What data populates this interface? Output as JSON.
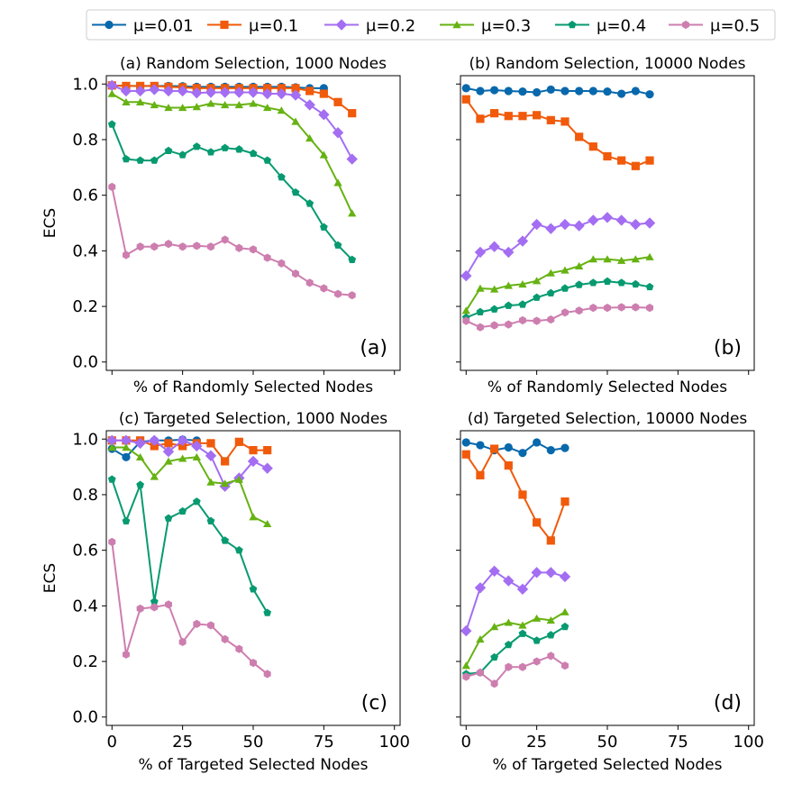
{
  "legend": {
    "placement": "top-center",
    "entries": [
      {
        "label": "μ=0.01",
        "color": "#0868ac",
        "marker": "circle"
      },
      {
        "label": "μ=0.1",
        "color": "#f05a0a",
        "marker": "square"
      },
      {
        "label": "μ=0.2",
        "color": "#a46ef2",
        "marker": "diamond"
      },
      {
        "label": "μ=0.3",
        "color": "#66b212",
        "marker": "triangle"
      },
      {
        "label": "μ=0.4",
        "color": "#079a70",
        "marker": "pentagon"
      },
      {
        "label": "μ=0.5",
        "color": "#cd7eaf",
        "marker": "hexagon"
      }
    ]
  },
  "chart_data": [
    {
      "type": "line",
      "title": "(a) Random Selection, 1000 Nodes",
      "tag": "(a)",
      "xlabel": "% of Randomly Selected Nodes",
      "ylabel": "ECS",
      "xlim": [
        -2,
        102
      ],
      "ylim": [
        -0.03,
        1.03
      ],
      "xticks": [
        0,
        25,
        50,
        75,
        100
      ],
      "show_xtick_labels": false,
      "yticks": [
        0.0,
        0.2,
        0.4,
        0.6,
        0.8,
        1.0
      ],
      "ytick_labels": [
        "0.0",
        "0.2",
        "0.4",
        "0.6",
        "0.8",
        "1.0"
      ],
      "show_ytick_labels": true,
      "grid": false,
      "series": [
        {
          "name": "μ=0.01",
          "x": [
            0,
            5,
            10,
            15,
            20,
            25,
            30,
            35,
            40,
            45,
            50,
            55,
            60,
            65,
            70,
            75
          ],
          "values": [
            0.995,
            0.993,
            0.993,
            0.993,
            0.993,
            0.992,
            0.99,
            0.99,
            0.99,
            0.99,
            0.99,
            0.99,
            0.99,
            0.988,
            0.985,
            0.985
          ]
        },
        {
          "name": "μ=0.1",
          "x": [
            0,
            5,
            10,
            15,
            20,
            25,
            30,
            35,
            40,
            45,
            50,
            55,
            60,
            65,
            70,
            75,
            80,
            85
          ],
          "values": [
            0.995,
            0.993,
            0.993,
            0.993,
            0.99,
            0.988,
            0.985,
            0.985,
            0.985,
            0.985,
            0.985,
            0.985,
            0.985,
            0.985,
            0.975,
            0.965,
            0.935,
            0.895
          ]
        },
        {
          "name": "μ=0.2",
          "x": [
            0,
            5,
            10,
            15,
            20,
            25,
            30,
            35,
            40,
            45,
            50,
            55,
            60,
            65,
            70,
            75,
            80,
            85
          ],
          "values": [
            0.995,
            0.975,
            0.975,
            0.98,
            0.975,
            0.975,
            0.968,
            0.97,
            0.97,
            0.97,
            0.97,
            0.965,
            0.965,
            0.96,
            0.925,
            0.89,
            0.825,
            0.73
          ]
        },
        {
          "name": "μ=0.3",
          "x": [
            0,
            5,
            10,
            15,
            20,
            25,
            30,
            35,
            40,
            45,
            50,
            55,
            60,
            65,
            70,
            75,
            80,
            85
          ],
          "values": [
            0.965,
            0.935,
            0.935,
            0.925,
            0.915,
            0.915,
            0.918,
            0.93,
            0.925,
            0.925,
            0.93,
            0.915,
            0.905,
            0.865,
            0.805,
            0.745,
            0.645,
            0.535
          ]
        },
        {
          "name": "μ=0.4",
          "x": [
            0,
            5,
            10,
            15,
            20,
            25,
            30,
            35,
            40,
            45,
            50,
            55,
            60,
            65,
            70,
            75,
            80,
            85
          ],
          "values": [
            0.855,
            0.73,
            0.725,
            0.725,
            0.76,
            0.745,
            0.775,
            0.755,
            0.77,
            0.765,
            0.75,
            0.725,
            0.665,
            0.61,
            0.57,
            0.485,
            0.42,
            0.368
          ]
        },
        {
          "name": "μ=0.5",
          "x": [
            0,
            5,
            10,
            15,
            20,
            25,
            30,
            35,
            40,
            45,
            50,
            55,
            60,
            65,
            70,
            75,
            80,
            85
          ],
          "values": [
            0.63,
            0.385,
            0.415,
            0.415,
            0.425,
            0.415,
            0.418,
            0.415,
            0.44,
            0.41,
            0.405,
            0.375,
            0.355,
            0.318,
            0.285,
            0.265,
            0.245,
            0.24
          ]
        }
      ]
    },
    {
      "type": "line",
      "title": "(b) Random Selection, 10000 Nodes",
      "tag": "(b)",
      "xlabel": "% of Randomly Selected Nodes",
      "ylabel": "",
      "xlim": [
        -2,
        102
      ],
      "ylim": [
        -0.03,
        1.03
      ],
      "xticks": [
        0,
        25,
        50,
        75,
        100
      ],
      "show_xtick_labels": false,
      "yticks": [
        0.0,
        0.2,
        0.4,
        0.6,
        0.8,
        1.0
      ],
      "show_ytick_labels": false,
      "grid": false,
      "series": [
        {
          "name": "μ=0.01",
          "x": [
            0,
            5,
            10,
            15,
            20,
            25,
            30,
            35,
            40,
            45,
            50,
            55,
            60,
            65
          ],
          "values": [
            0.985,
            0.975,
            0.978,
            0.975,
            0.973,
            0.97,
            0.98,
            0.975,
            0.975,
            0.975,
            0.973,
            0.965,
            0.975,
            0.963
          ]
        },
        {
          "name": "μ=0.1",
          "x": [
            0,
            5,
            10,
            15,
            20,
            25,
            30,
            35,
            40,
            45,
            50,
            55,
            60,
            65
          ],
          "values": [
            0.945,
            0.875,
            0.895,
            0.885,
            0.885,
            0.888,
            0.87,
            0.865,
            0.81,
            0.775,
            0.74,
            0.725,
            0.705,
            0.725
          ]
        },
        {
          "name": "μ=0.2",
          "x": [
            0,
            5,
            10,
            15,
            20,
            25,
            30,
            35,
            40,
            45,
            50,
            55,
            60,
            65
          ],
          "values": [
            0.31,
            0.395,
            0.415,
            0.395,
            0.435,
            0.495,
            0.48,
            0.495,
            0.49,
            0.51,
            0.52,
            0.51,
            0.495,
            0.5
          ]
        },
        {
          "name": "μ=0.3",
          "x": [
            0,
            5,
            10,
            15,
            20,
            25,
            30,
            35,
            40,
            45,
            50,
            55,
            60,
            65
          ],
          "values": [
            0.185,
            0.265,
            0.262,
            0.275,
            0.28,
            0.292,
            0.32,
            0.33,
            0.345,
            0.37,
            0.37,
            0.365,
            0.37,
            0.378
          ]
        },
        {
          "name": "μ=0.4",
          "x": [
            0,
            5,
            10,
            15,
            20,
            25,
            30,
            35,
            40,
            45,
            50,
            55,
            60,
            65
          ],
          "values": [
            0.16,
            0.18,
            0.19,
            0.203,
            0.207,
            0.232,
            0.248,
            0.265,
            0.278,
            0.285,
            0.29,
            0.285,
            0.28,
            0.27
          ]
        },
        {
          "name": "μ=0.5",
          "x": [
            0,
            5,
            10,
            15,
            20,
            25,
            30,
            35,
            40,
            45,
            50,
            55,
            60,
            65
          ],
          "values": [
            0.148,
            0.125,
            0.132,
            0.135,
            0.15,
            0.148,
            0.153,
            0.178,
            0.185,
            0.195,
            0.195,
            0.197,
            0.197,
            0.195
          ]
        }
      ]
    },
    {
      "type": "line",
      "title": "(c) Targeted Selection, 1000 Nodes",
      "tag": "(c)",
      "xlabel": "% of Targeted Selected Nodes",
      "ylabel": "ECS",
      "xlim": [
        -2,
        102
      ],
      "ylim": [
        -0.03,
        1.03
      ],
      "xticks": [
        0,
        25,
        50,
        75,
        100
      ],
      "xtick_labels": [
        "0",
        "25",
        "50",
        "75",
        "100"
      ],
      "show_xtick_labels": true,
      "yticks": [
        0.0,
        0.2,
        0.4,
        0.6,
        0.8,
        1.0
      ],
      "ytick_labels": [
        "0.0",
        "0.2",
        "0.4",
        "0.6",
        "0.8",
        "1.0"
      ],
      "show_ytick_labels": true,
      "grid": false,
      "series": [
        {
          "name": "μ=0.01",
          "x": [
            0,
            5,
            10,
            15,
            20,
            25,
            30
          ],
          "values": [
            0.965,
            0.935,
            0.99,
            0.995,
            0.995,
            0.998,
            0.995
          ]
        },
        {
          "name": "μ=0.1",
          "x": [
            0,
            5,
            10,
            15,
            20,
            25,
            30,
            35,
            40,
            45,
            50,
            55
          ],
          "values": [
            0.995,
            0.995,
            0.995,
            0.975,
            0.985,
            0.975,
            0.985,
            0.985,
            0.92,
            0.99,
            0.96,
            0.96
          ]
        },
        {
          "name": "μ=0.2",
          "x": [
            0,
            5,
            10,
            15,
            20,
            25,
            30,
            35,
            40,
            45,
            50,
            55
          ],
          "values": [
            0.995,
            0.995,
            0.985,
            0.995,
            0.955,
            0.995,
            0.975,
            0.94,
            0.83,
            0.86,
            0.92,
            0.895
          ]
        },
        {
          "name": "μ=0.3",
          "x": [
            0,
            5,
            10,
            15,
            20,
            25,
            30,
            35,
            40,
            45,
            50,
            55
          ],
          "values": [
            0.97,
            0.97,
            0.935,
            0.865,
            0.92,
            0.93,
            0.935,
            0.845,
            0.84,
            0.855,
            0.72,
            0.695
          ]
        },
        {
          "name": "μ=0.4",
          "x": [
            0,
            5,
            10,
            15,
            20,
            25,
            30,
            35,
            40,
            45,
            50,
            55
          ],
          "values": [
            0.855,
            0.705,
            0.835,
            0.415,
            0.715,
            0.74,
            0.775,
            0.705,
            0.635,
            0.6,
            0.46,
            0.375
          ]
        },
        {
          "name": "μ=0.5",
          "x": [
            0,
            5,
            10,
            15,
            20,
            25,
            30,
            35,
            40,
            45,
            50,
            55
          ],
          "values": [
            0.63,
            0.225,
            0.39,
            0.395,
            0.405,
            0.27,
            0.335,
            0.33,
            0.28,
            0.245,
            0.195,
            0.155
          ]
        }
      ]
    },
    {
      "type": "line",
      "title": "(d) Targeted Selection, 10000 Nodes",
      "tag": "(d)",
      "xlabel": "% of Targeted Selected Nodes",
      "ylabel": "",
      "xlim": [
        -2,
        102
      ],
      "ylim": [
        -0.03,
        1.03
      ],
      "xticks": [
        0,
        25,
        50,
        75,
        100
      ],
      "xtick_labels": [
        "0",
        "25",
        "50",
        "75",
        "100"
      ],
      "show_xtick_labels": true,
      "yticks": [
        0.0,
        0.2,
        0.4,
        0.6,
        0.8,
        1.0
      ],
      "show_ytick_labels": false,
      "grid": false,
      "series": [
        {
          "name": "μ=0.01",
          "x": [
            0,
            5,
            10,
            15,
            20,
            25,
            30,
            35
          ],
          "values": [
            0.988,
            0.978,
            0.96,
            0.97,
            0.95,
            0.988,
            0.96,
            0.968
          ]
        },
        {
          "name": "μ=0.1",
          "x": [
            0,
            5,
            10,
            15,
            20,
            25,
            30,
            35
          ],
          "values": [
            0.945,
            0.87,
            0.965,
            0.905,
            0.8,
            0.7,
            0.635,
            0.775
          ]
        },
        {
          "name": "μ=0.2",
          "x": [
            0,
            5,
            10,
            15,
            20,
            25,
            30,
            35
          ],
          "values": [
            0.31,
            0.465,
            0.525,
            0.49,
            0.46,
            0.52,
            0.52,
            0.505
          ]
        },
        {
          "name": "μ=0.3",
          "x": [
            0,
            5,
            10,
            15,
            20,
            25,
            30,
            35
          ],
          "values": [
            0.185,
            0.28,
            0.325,
            0.34,
            0.33,
            0.355,
            0.348,
            0.378
          ]
        },
        {
          "name": "μ=0.4",
          "x": [
            0,
            5,
            10,
            15,
            20,
            25,
            30,
            35
          ],
          "values": [
            0.155,
            0.16,
            0.215,
            0.26,
            0.3,
            0.275,
            0.295,
            0.325
          ]
        },
        {
          "name": "μ=0.5",
          "x": [
            0,
            5,
            10,
            15,
            20,
            25,
            30,
            35
          ],
          "values": [
            0.145,
            0.16,
            0.12,
            0.18,
            0.18,
            0.2,
            0.22,
            0.185
          ]
        }
      ]
    }
  ]
}
